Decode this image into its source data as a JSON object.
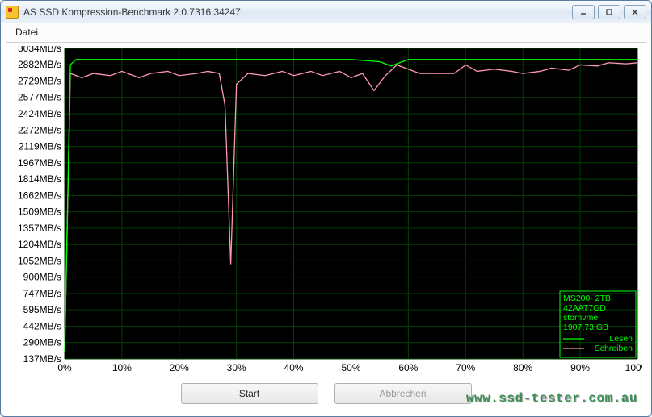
{
  "window": {
    "title": "AS SSD Kompression-Benchmark 2.0.7316.34247"
  },
  "menu": {
    "file": "Datei"
  },
  "buttons": {
    "start": "Start",
    "cancel": "Abbrechen"
  },
  "watermark": "www.ssd-tester.com.au",
  "chart": {
    "background_color": "#000000",
    "grid_color": "#004000",
    "axis_label_color": "#000000",
    "legend_text_color": "#00ff00",
    "legend_box_color": "#00ff00",
    "read_color": "#00ff00",
    "write_color": "#ff96b4",
    "y_axis": {
      "unit": "MB/s",
      "ticks": [
        137,
        290,
        442,
        595,
        747,
        900,
        1052,
        1204,
        1357,
        1509,
        1662,
        1814,
        1967,
        2119,
        2272,
        2424,
        2577,
        2729,
        2882,
        3034
      ]
    },
    "x_axis": {
      "ticks": [
        0,
        10,
        20,
        30,
        40,
        50,
        60,
        70,
        80,
        90,
        100
      ],
      "suffix": "%"
    },
    "legend": {
      "device_line1": "MS200- 2TB",
      "device_line2": "42AAT7GD",
      "device_line3": "stornvme",
      "device_line4": "1907,73 GB",
      "read_label": "Lesen",
      "write_label": "Schreiben"
    },
    "series": {
      "read": {
        "x": [
          0,
          1,
          2,
          3,
          4,
          5,
          10,
          15,
          20,
          25,
          28,
          30,
          35,
          40,
          45,
          50,
          55,
          57,
          60,
          63,
          65,
          70,
          75,
          80,
          85,
          90,
          95,
          100
        ],
        "y": [
          200,
          2882,
          2930,
          2930,
          2930,
          2930,
          2930,
          2930,
          2930,
          2930,
          2930,
          2930,
          2930,
          2930,
          2930,
          2930,
          2910,
          2870,
          2930,
          2930,
          2930,
          2930,
          2930,
          2930,
          2930,
          2930,
          2930,
          2930
        ]
      },
      "write": {
        "x": [
          0,
          1,
          3,
          5,
          8,
          10,
          13,
          15,
          18,
          20,
          23,
          25,
          27,
          28,
          29,
          30,
          32,
          35,
          38,
          40,
          43,
          45,
          48,
          50,
          52,
          54,
          56,
          58,
          60,
          62,
          65,
          68,
          70,
          72,
          75,
          78,
          80,
          83,
          85,
          88,
          90,
          93,
          95,
          98,
          100
        ],
        "y": [
          200,
          2800,
          2760,
          2800,
          2780,
          2820,
          2760,
          2800,
          2820,
          2780,
          2800,
          2820,
          2800,
          2500,
          1020,
          2700,
          2800,
          2780,
          2820,
          2780,
          2820,
          2780,
          2820,
          2760,
          2800,
          2640,
          2780,
          2880,
          2840,
          2800,
          2800,
          2800,
          2880,
          2820,
          2840,
          2820,
          2800,
          2820,
          2850,
          2830,
          2880,
          2870,
          2900,
          2890,
          2900
        ]
      }
    }
  }
}
